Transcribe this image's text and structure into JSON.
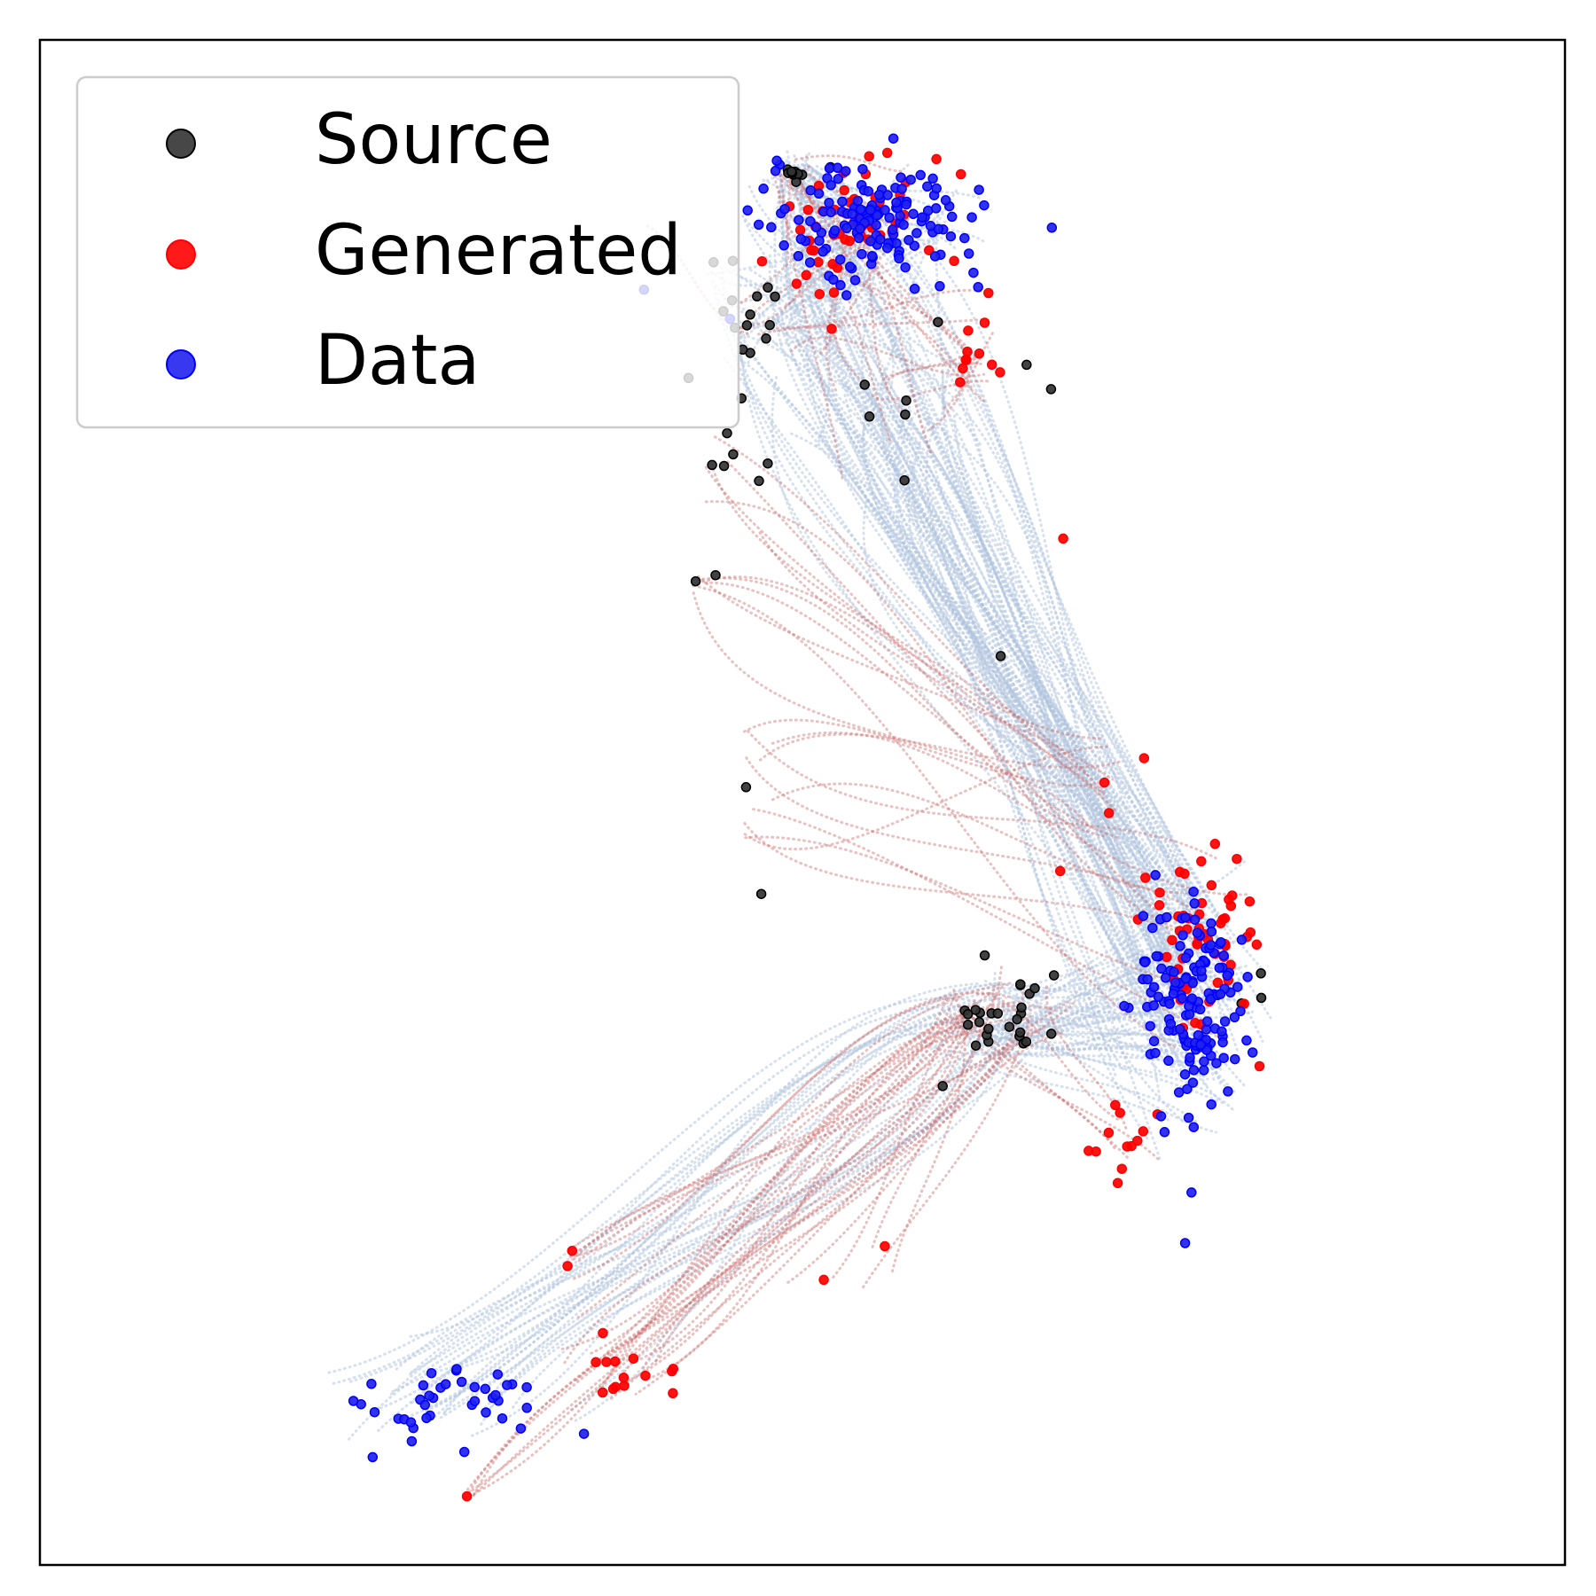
{
  "chart_data": {
    "type": "scatter",
    "title": "",
    "xlabel": "",
    "ylabel": "",
    "xlim": [
      0,
      100
    ],
    "ylim": [
      0,
      100
    ],
    "grid": false,
    "ticks": false,
    "legend": {
      "position": "upper-left",
      "entries": [
        {
          "label": "Source",
          "color": "#333333",
          "edge": "#000000"
        },
        {
          "label": "Generated",
          "color": "#ff0000",
          "edge": "#ff0000"
        },
        {
          "label": "Data",
          "color": "#2222ee",
          "edge": "#0000ff"
        }
      ]
    },
    "trajectory_colors": {
      "source_to_data": "#b0c4de",
      "source_to_generated": "#c86464"
    },
    "series": [
      {
        "name": "Source",
        "clusters": [
          {
            "cx": 49.5,
            "cy": 91.5,
            "sx": 0.6,
            "sy": 0.4,
            "n": 10
          },
          {
            "cx": 47.0,
            "cy": 82.0,
            "sx": 1.5,
            "sy": 2.0,
            "n": 14
          },
          {
            "cx": 45.0,
            "cy": 72.0,
            "sx": 1.2,
            "sy": 2.0,
            "n": 8
          },
          {
            "cx": 56.0,
            "cy": 76.0,
            "sx": 2.5,
            "sy": 3.0,
            "n": 6
          },
          {
            "cx": 63.0,
            "cy": 36.0,
            "sx": 2.0,
            "sy": 1.2,
            "n": 26
          },
          {
            "cx": 80.0,
            "cy": 38.0,
            "sx": 1.0,
            "sy": 1.0,
            "n": 3
          }
        ],
        "points": [
          [
            43.0,
            64.5
          ],
          [
            44.3,
            64.9
          ],
          [
            46.3,
            51.0
          ],
          [
            47.3,
            44.0
          ],
          [
            64.7,
            78.7
          ],
          [
            66.3,
            77.1
          ],
          [
            63.0,
            59.6
          ],
          [
            61.6,
            35.6
          ],
          [
            59.2,
            31.4
          ]
        ]
      },
      {
        "name": "Generated",
        "clusters": [
          {
            "cx": 53.0,
            "cy": 88.5,
            "sx": 3.0,
            "sy": 2.0,
            "n": 45
          },
          {
            "cx": 51.5,
            "cy": 84.0,
            "sx": 2.0,
            "sy": 1.8,
            "n": 10
          },
          {
            "cx": 61.5,
            "cy": 79.5,
            "sx": 0.8,
            "sy": 1.5,
            "n": 10
          },
          {
            "cx": 76.5,
            "cy": 41.0,
            "sx": 2.0,
            "sy": 3.5,
            "n": 55
          },
          {
            "cx": 71.5,
            "cy": 28.0,
            "sx": 1.2,
            "sy": 1.2,
            "n": 12
          },
          {
            "cx": 38.0,
            "cy": 13.0,
            "sx": 2.0,
            "sy": 0.9,
            "n": 14
          }
        ],
        "points": [
          [
            34.9,
            20.6
          ],
          [
            34.6,
            19.6
          ],
          [
            28.0,
            4.5
          ],
          [
            51.4,
            18.7
          ],
          [
            55.4,
            20.9
          ],
          [
            69.8,
            51.3
          ],
          [
            70.1,
            49.3
          ],
          [
            67.1,
            67.3
          ],
          [
            75.3,
            42.4
          ],
          [
            66.9,
            45.5
          ],
          [
            72.4,
            52.9
          ],
          [
            62.2,
            83.4
          ]
        ]
      },
      {
        "name": "Data",
        "clusters": [
          {
            "cx": 55.0,
            "cy": 88.0,
            "sx": 3.6,
            "sy": 1.8,
            "n": 150
          },
          {
            "cx": 75.5,
            "cy": 36.5,
            "sx": 1.8,
            "sy": 3.8,
            "n": 150
          },
          {
            "cx": 27.0,
            "cy": 11.0,
            "sx": 4.0,
            "sy": 1.5,
            "n": 40
          }
        ],
        "points": []
      }
    ],
    "trajectories": [
      {
        "from": "source-top",
        "to": "data-top",
        "n": 40,
        "kind": "source_to_data"
      },
      {
        "from": "source-top",
        "to": "data-right",
        "n": 90,
        "kind": "source_to_data"
      },
      {
        "from": "source-bottom",
        "to": "data-right",
        "n": 45,
        "kind": "source_to_data"
      },
      {
        "from": "source-bottom",
        "to": "data-lower-left",
        "n": 30,
        "kind": "source_to_data"
      },
      {
        "from": "source-upper-left",
        "to": "generated-right",
        "n": 22,
        "kind": "source_to_generated"
      },
      {
        "from": "source-bottom",
        "to": "generated-lower-left",
        "n": 28,
        "kind": "source_to_generated"
      },
      {
        "from": "source-bottom",
        "to": "generated-right-lower",
        "n": 10,
        "kind": "source_to_generated"
      },
      {
        "from": "source-top",
        "to": "generated-top",
        "n": 30,
        "kind": "source_to_generated"
      }
    ]
  }
}
